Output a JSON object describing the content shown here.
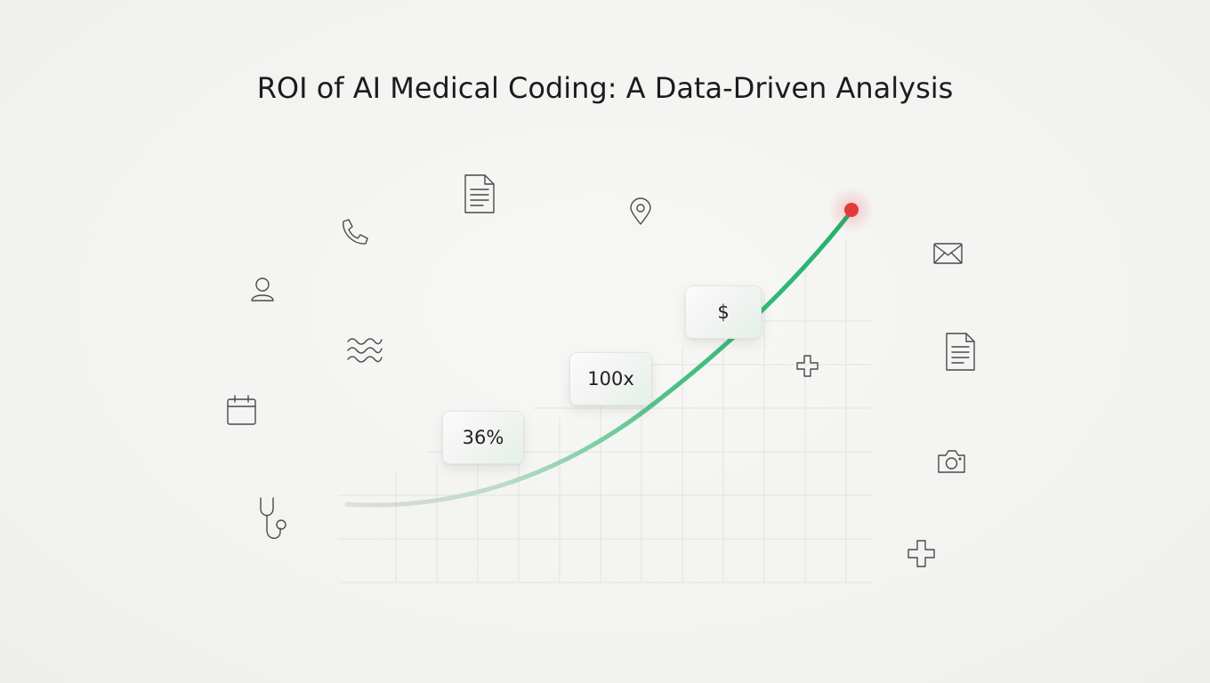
{
  "title": "ROI of AI Medical Coding: A Data-Driven Analysis",
  "stat_cards": [
    {
      "label": "36%"
    },
    {
      "label": "100x"
    },
    {
      "label": "$"
    }
  ],
  "colors": {
    "curve": "#2db872",
    "endpoint": "#e23b3b",
    "icon_stroke": "#4a4a4a",
    "grid": "#e3e3e1"
  },
  "icons": [
    "document-icon",
    "location-pin-icon",
    "phone-icon",
    "user-icon",
    "wave-icon",
    "calendar-icon",
    "stethoscope-icon",
    "envelope-icon",
    "document-icon",
    "camera-icon",
    "medical-cross-icon",
    "medical-cross-icon"
  ]
}
